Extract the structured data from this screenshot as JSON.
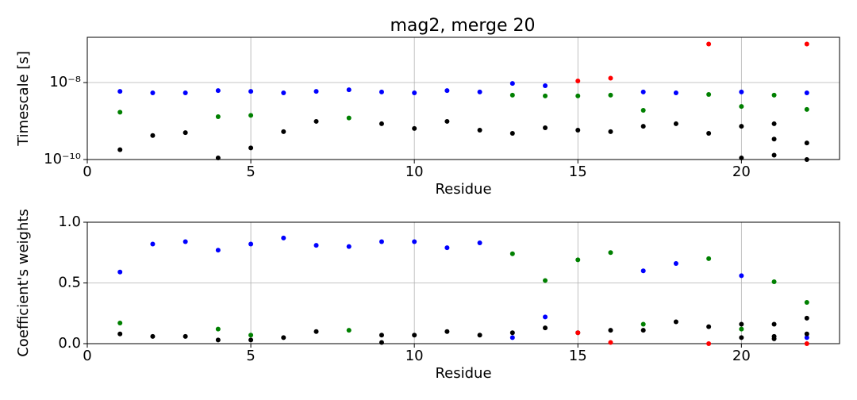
{
  "chart_data": [
    {
      "type": "scatter",
      "title": "mag2, merge 20",
      "xlabel": "Residue",
      "ylabel": "Timescale [s]",
      "xlim": [
        0,
        23
      ],
      "xticks": [
        0,
        5,
        10,
        15,
        20
      ],
      "ylim": [
        1e-10,
        1.5e-07
      ],
      "yscale": "log",
      "yticks": [
        {
          "value": 1e-10,
          "label": "10⁻¹⁰"
        },
        {
          "value": 1e-08,
          "label": "10⁻⁸"
        }
      ],
      "grid": true,
      "series": [
        {
          "color": "#0000ff",
          "x": [
            1,
            2,
            3,
            4,
            5,
            6,
            7,
            8,
            9,
            10,
            11,
            12,
            13,
            14,
            17,
            18,
            20,
            22
          ],
          "values": [
            5.9e-09,
            5.4e-09,
            5.4e-09,
            6.2e-09,
            5.9e-09,
            5.4e-09,
            5.9e-09,
            6.5e-09,
            5.7e-09,
            5.4e-09,
            6.2e-09,
            5.7e-09,
            9.5e-09,
            8.3e-09,
            5.7e-09,
            5.4e-09,
            5.7e-09,
            5.4e-09
          ]
        },
        {
          "color": "#008000",
          "x": [
            1,
            4,
            5,
            8,
            13,
            14,
            15,
            16,
            17,
            19,
            20,
            21,
            22
          ],
          "values": [
            1.7e-09,
            1.3e-09,
            1.4e-09,
            1.2e-09,
            4.7e-09,
            4.5e-09,
            4.5e-09,
            4.7e-09,
            1.9e-09,
            4.9e-09,
            2.4e-09,
            4.7e-09,
            2e-09
          ]
        },
        {
          "color": "#000000",
          "x": [
            1,
            2,
            3,
            4,
            5,
            6,
            7,
            9,
            10,
            11,
            12,
            13,
            14,
            15,
            16,
            17,
            18,
            19,
            20,
            20,
            21,
            21,
            21,
            22,
            22
          ],
          "values": [
            1.8e-10,
            4.2e-10,
            5e-10,
            1.1e-10,
            2e-10,
            5.3e-10,
            9.8e-10,
            8.5e-10,
            6.4e-10,
            9.8e-10,
            5.8e-10,
            4.8e-10,
            6.7e-10,
            5.8e-10,
            5.3e-10,
            7.3e-10,
            8.5e-10,
            4.8e-10,
            7.3e-10,
            1.1e-10,
            8.5e-10,
            3.4e-10,
            1.3e-10,
            2.7e-10,
            1e-10
          ]
        },
        {
          "color": "#ff0000",
          "x": [
            15,
            16,
            19,
            22
          ],
          "values": [
            1.1e-08,
            1.3e-08,
            1e-07,
            1e-07
          ]
        }
      ]
    },
    {
      "type": "scatter",
      "xlabel": "Residue",
      "ylabel": "Coefficient's weights",
      "xlim": [
        0,
        23
      ],
      "xticks": [
        0,
        5,
        10,
        15,
        20
      ],
      "ylim": [
        0,
        1
      ],
      "yticks": [
        {
          "value": 0,
          "label": "0.0"
        },
        0.5,
        {
          "value": 1,
          "label": "1.0"
        }
      ],
      "grid": true,
      "series": [
        {
          "color": "#0000ff",
          "x": [
            1,
            2,
            3,
            4,
            5,
            6,
            7,
            8,
            9,
            10,
            11,
            12,
            13,
            14,
            17,
            18,
            20,
            22
          ],
          "values": [
            0.59,
            0.82,
            0.84,
            0.77,
            0.82,
            0.87,
            0.81,
            0.8,
            0.84,
            0.84,
            0.79,
            0.83,
            0.05,
            0.22,
            0.6,
            0.66,
            0.56,
            0.05
          ]
        },
        {
          "color": "#008000",
          "x": [
            1,
            4,
            5,
            8,
            13,
            14,
            15,
            16,
            17,
            19,
            20,
            21,
            22
          ],
          "values": [
            0.17,
            0.12,
            0.07,
            0.11,
            0.74,
            0.52,
            0.69,
            0.75,
            0.16,
            0.7,
            0.12,
            0.51,
            0.34
          ]
        },
        {
          "color": "#000000",
          "x": [
            1,
            2,
            3,
            4,
            5,
            6,
            7,
            9,
            9,
            10,
            11,
            12,
            13,
            14,
            15,
            16,
            17,
            18,
            19,
            20,
            20,
            21,
            21,
            21,
            22,
            22
          ],
          "values": [
            0.08,
            0.06,
            0.06,
            0.03,
            0.03,
            0.05,
            0.1,
            0.07,
            0.01,
            0.07,
            0.1,
            0.07,
            0.09,
            0.13,
            0.09,
            0.11,
            0.11,
            0.18,
            0.14,
            0.16,
            0.05,
            0.16,
            0.06,
            0.04,
            0.21,
            0.08
          ]
        },
        {
          "color": "#ff0000",
          "x": [
            15,
            16,
            19,
            22
          ],
          "values": [
            0.09,
            0.01,
            0,
            0
          ]
        }
      ]
    }
  ]
}
